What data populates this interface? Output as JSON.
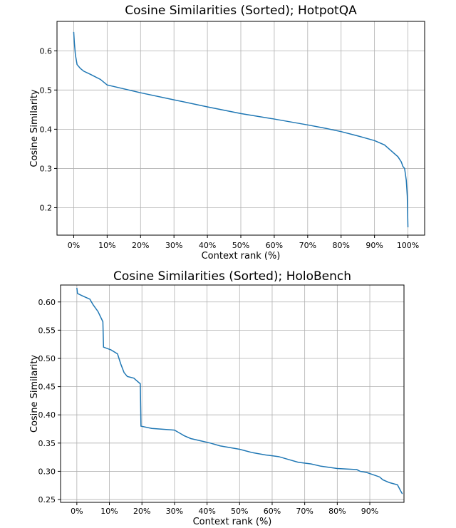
{
  "chart_data": [
    {
      "type": "line",
      "title": "Cosine Similarities (Sorted); HotpotQA",
      "xlabel": "Context rank (%)",
      "ylabel": "Cosine Similarity",
      "xlim": [
        -5,
        105
      ],
      "ylim": [
        0.13,
        0.675
      ],
      "xticks": [
        0,
        10,
        20,
        30,
        40,
        50,
        60,
        70,
        80,
        90,
        100
      ],
      "xtick_labels": [
        "0%",
        "10%",
        "20%",
        "30%",
        "40%",
        "50%",
        "60%",
        "70%",
        "80%",
        "90%",
        "100%"
      ],
      "yticks": [
        0.2,
        0.3,
        0.4,
        0.5,
        0.6
      ],
      "ytick_labels": [
        "0.2",
        "0.3",
        "0.4",
        "0.5",
        "0.6"
      ],
      "grid": true,
      "color": "#1f77b4",
      "series": [
        {
          "x": [
            0,
            0.2,
            0.5,
            1,
            2,
            3,
            5,
            8,
            10,
            15,
            20,
            30,
            40,
            50,
            60,
            70,
            75,
            80,
            85,
            90,
            93,
            95,
            97,
            98,
            98.5,
            99,
            99.5,
            99.8,
            100
          ],
          "y": [
            0.648,
            0.62,
            0.59,
            0.565,
            0.555,
            0.548,
            0.54,
            0.527,
            0.513,
            0.503,
            0.493,
            0.475,
            0.457,
            0.44,
            0.426,
            0.411,
            0.403,
            0.394,
            0.383,
            0.371,
            0.36,
            0.345,
            0.33,
            0.317,
            0.305,
            0.3,
            0.27,
            0.23,
            0.15
          ]
        }
      ]
    },
    {
      "type": "line",
      "title": "Cosine Similarities (Sorted); HoloBench",
      "xlabel": "Context rank (%)",
      "ylabel": "Cosine Similarity",
      "xlim": [
        -5,
        100.5
      ],
      "ylim": [
        0.245,
        0.63
      ],
      "xticks": [
        0,
        10,
        20,
        30,
        40,
        50,
        60,
        70,
        80,
        90
      ],
      "xtick_labels": [
        "0%",
        "10%",
        "20%",
        "30%",
        "40%",
        "50%",
        "60%",
        "70%",
        "80%",
        "90%"
      ],
      "yticks": [
        0.25,
        0.3,
        0.35,
        0.4,
        0.45,
        0.5,
        0.55,
        0.6
      ],
      "ytick_labels": [
        "0.25",
        "0.30",
        "0.35",
        "0.40",
        "0.45",
        "0.50",
        "0.55",
        "0.60"
      ],
      "grid": true,
      "color": "#1f77b4",
      "series": [
        {
          "x": [
            0,
            0.2,
            2,
            4,
            5,
            6.5,
            8,
            8.2,
            10.5,
            12.5,
            13.5,
            14.5,
            15.5,
            17.5,
            18.5,
            19.5,
            19.7,
            23,
            30,
            33,
            35,
            38,
            41,
            44,
            50,
            54,
            58,
            62,
            65,
            68,
            72,
            75,
            80,
            86,
            87,
            89,
            91,
            93,
            94,
            96,
            98.5,
            99.5,
            100
          ],
          "y": [
            0.625,
            0.615,
            0.61,
            0.605,
            0.595,
            0.583,
            0.565,
            0.52,
            0.515,
            0.508,
            0.49,
            0.475,
            0.468,
            0.465,
            0.46,
            0.455,
            0.38,
            0.376,
            0.373,
            0.363,
            0.358,
            0.354,
            0.35,
            0.345,
            0.339,
            0.333,
            0.329,
            0.326,
            0.321,
            0.316,
            0.313,
            0.309,
            0.305,
            0.303,
            0.3,
            0.298,
            0.294,
            0.29,
            0.285,
            0.28,
            0.276,
            0.265,
            0.26
          ]
        }
      ]
    }
  ]
}
